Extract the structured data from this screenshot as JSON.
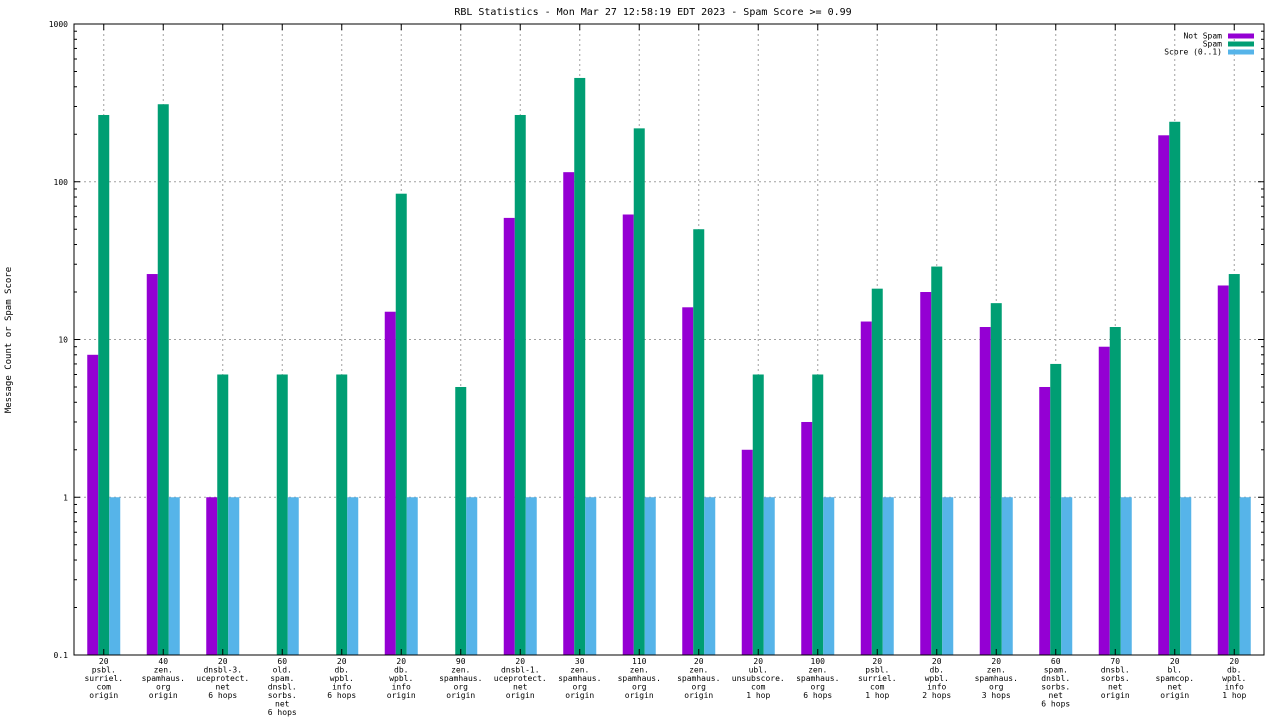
{
  "chart_data": {
    "type": "bar",
    "title": "RBL Statistics - Mon Mar 27 12:58:19 EDT 2023 - Spam Score >= 0.99",
    "xlabel": "",
    "ylabel": "Message Count or Spam Score",
    "yscale": "log",
    "ylim": [
      0.1,
      1000
    ],
    "yticks": [
      0.1,
      1,
      10,
      100,
      1000
    ],
    "ytick_labels": [
      "0.1",
      "1",
      "10",
      "100",
      "1000"
    ],
    "grid": true,
    "legend_position": "top-right",
    "categories": [
      [
        "20",
        "psbl.",
        "surriel.",
        "com",
        "origin"
      ],
      [
        "40",
        "zen.",
        "spamhaus.",
        "org",
        "origin"
      ],
      [
        "20",
        "dnsbl-3.",
        "uceprotect.",
        "net",
        "6 hops"
      ],
      [
        "60",
        "old.",
        "spam.",
        "dnsbl.",
        "sorbs.",
        "net",
        "6 hops"
      ],
      [
        "20",
        "db.",
        "wpbl.",
        "info",
        "6 hops"
      ],
      [
        "20",
        "db.",
        "wpbl.",
        "info",
        "origin"
      ],
      [
        "90",
        "zen.",
        "spamhaus.",
        "org",
        "origin"
      ],
      [
        "20",
        "dnsbl-1.",
        "uceprotect.",
        "net",
        "origin"
      ],
      [
        "30",
        "zen.",
        "spamhaus.",
        "org",
        "origin"
      ],
      [
        "110",
        "zen.",
        "spamhaus.",
        "org",
        "origin"
      ],
      [
        "20",
        "zen.",
        "spamhaus.",
        "org",
        "origin"
      ],
      [
        "20",
        "ubl.",
        "unsubscore.",
        "com",
        "1 hop"
      ],
      [
        "100",
        "zen.",
        "spamhaus.",
        "org",
        "6 hops"
      ],
      [
        "20",
        "psbl.",
        "surriel.",
        "com",
        "1 hop"
      ],
      [
        "20",
        "db.",
        "wpbl.",
        "info",
        "2 hops"
      ],
      [
        "20",
        "zen.",
        "spamhaus.",
        "org",
        "3 hops"
      ],
      [
        "60",
        "spam.",
        "dnsbl.",
        "sorbs.",
        "net",
        "6 hops"
      ],
      [
        "70",
        "dnsbl.",
        "sorbs.",
        "net",
        "origin"
      ],
      [
        "20",
        "bl.",
        "spamcop.",
        "net",
        "origin"
      ],
      [
        "20",
        "db.",
        "wpbl.",
        "info",
        "1 hop"
      ]
    ],
    "series": [
      {
        "name": "Not Spam",
        "color": "#9400d3",
        "values": [
          8,
          26,
          1,
          null,
          null,
          15,
          null,
          59,
          115,
          62,
          16,
          2,
          3,
          13,
          20,
          12,
          5,
          9,
          197,
          22
        ]
      },
      {
        "name": "Spam",
        "color": "#009e73",
        "values": [
          265,
          310,
          6,
          6,
          6,
          84,
          5,
          265,
          455,
          218,
          50,
          6,
          6,
          21,
          29,
          17,
          7,
          12,
          240,
          26
        ]
      },
      {
        "name": "Score (0..1)",
        "color": "#56b4e9",
        "values": [
          1,
          1,
          1,
          1,
          1,
          1,
          1,
          1,
          1,
          1,
          1,
          1,
          1,
          1,
          1,
          1,
          1,
          1,
          1,
          1
        ]
      }
    ]
  }
}
